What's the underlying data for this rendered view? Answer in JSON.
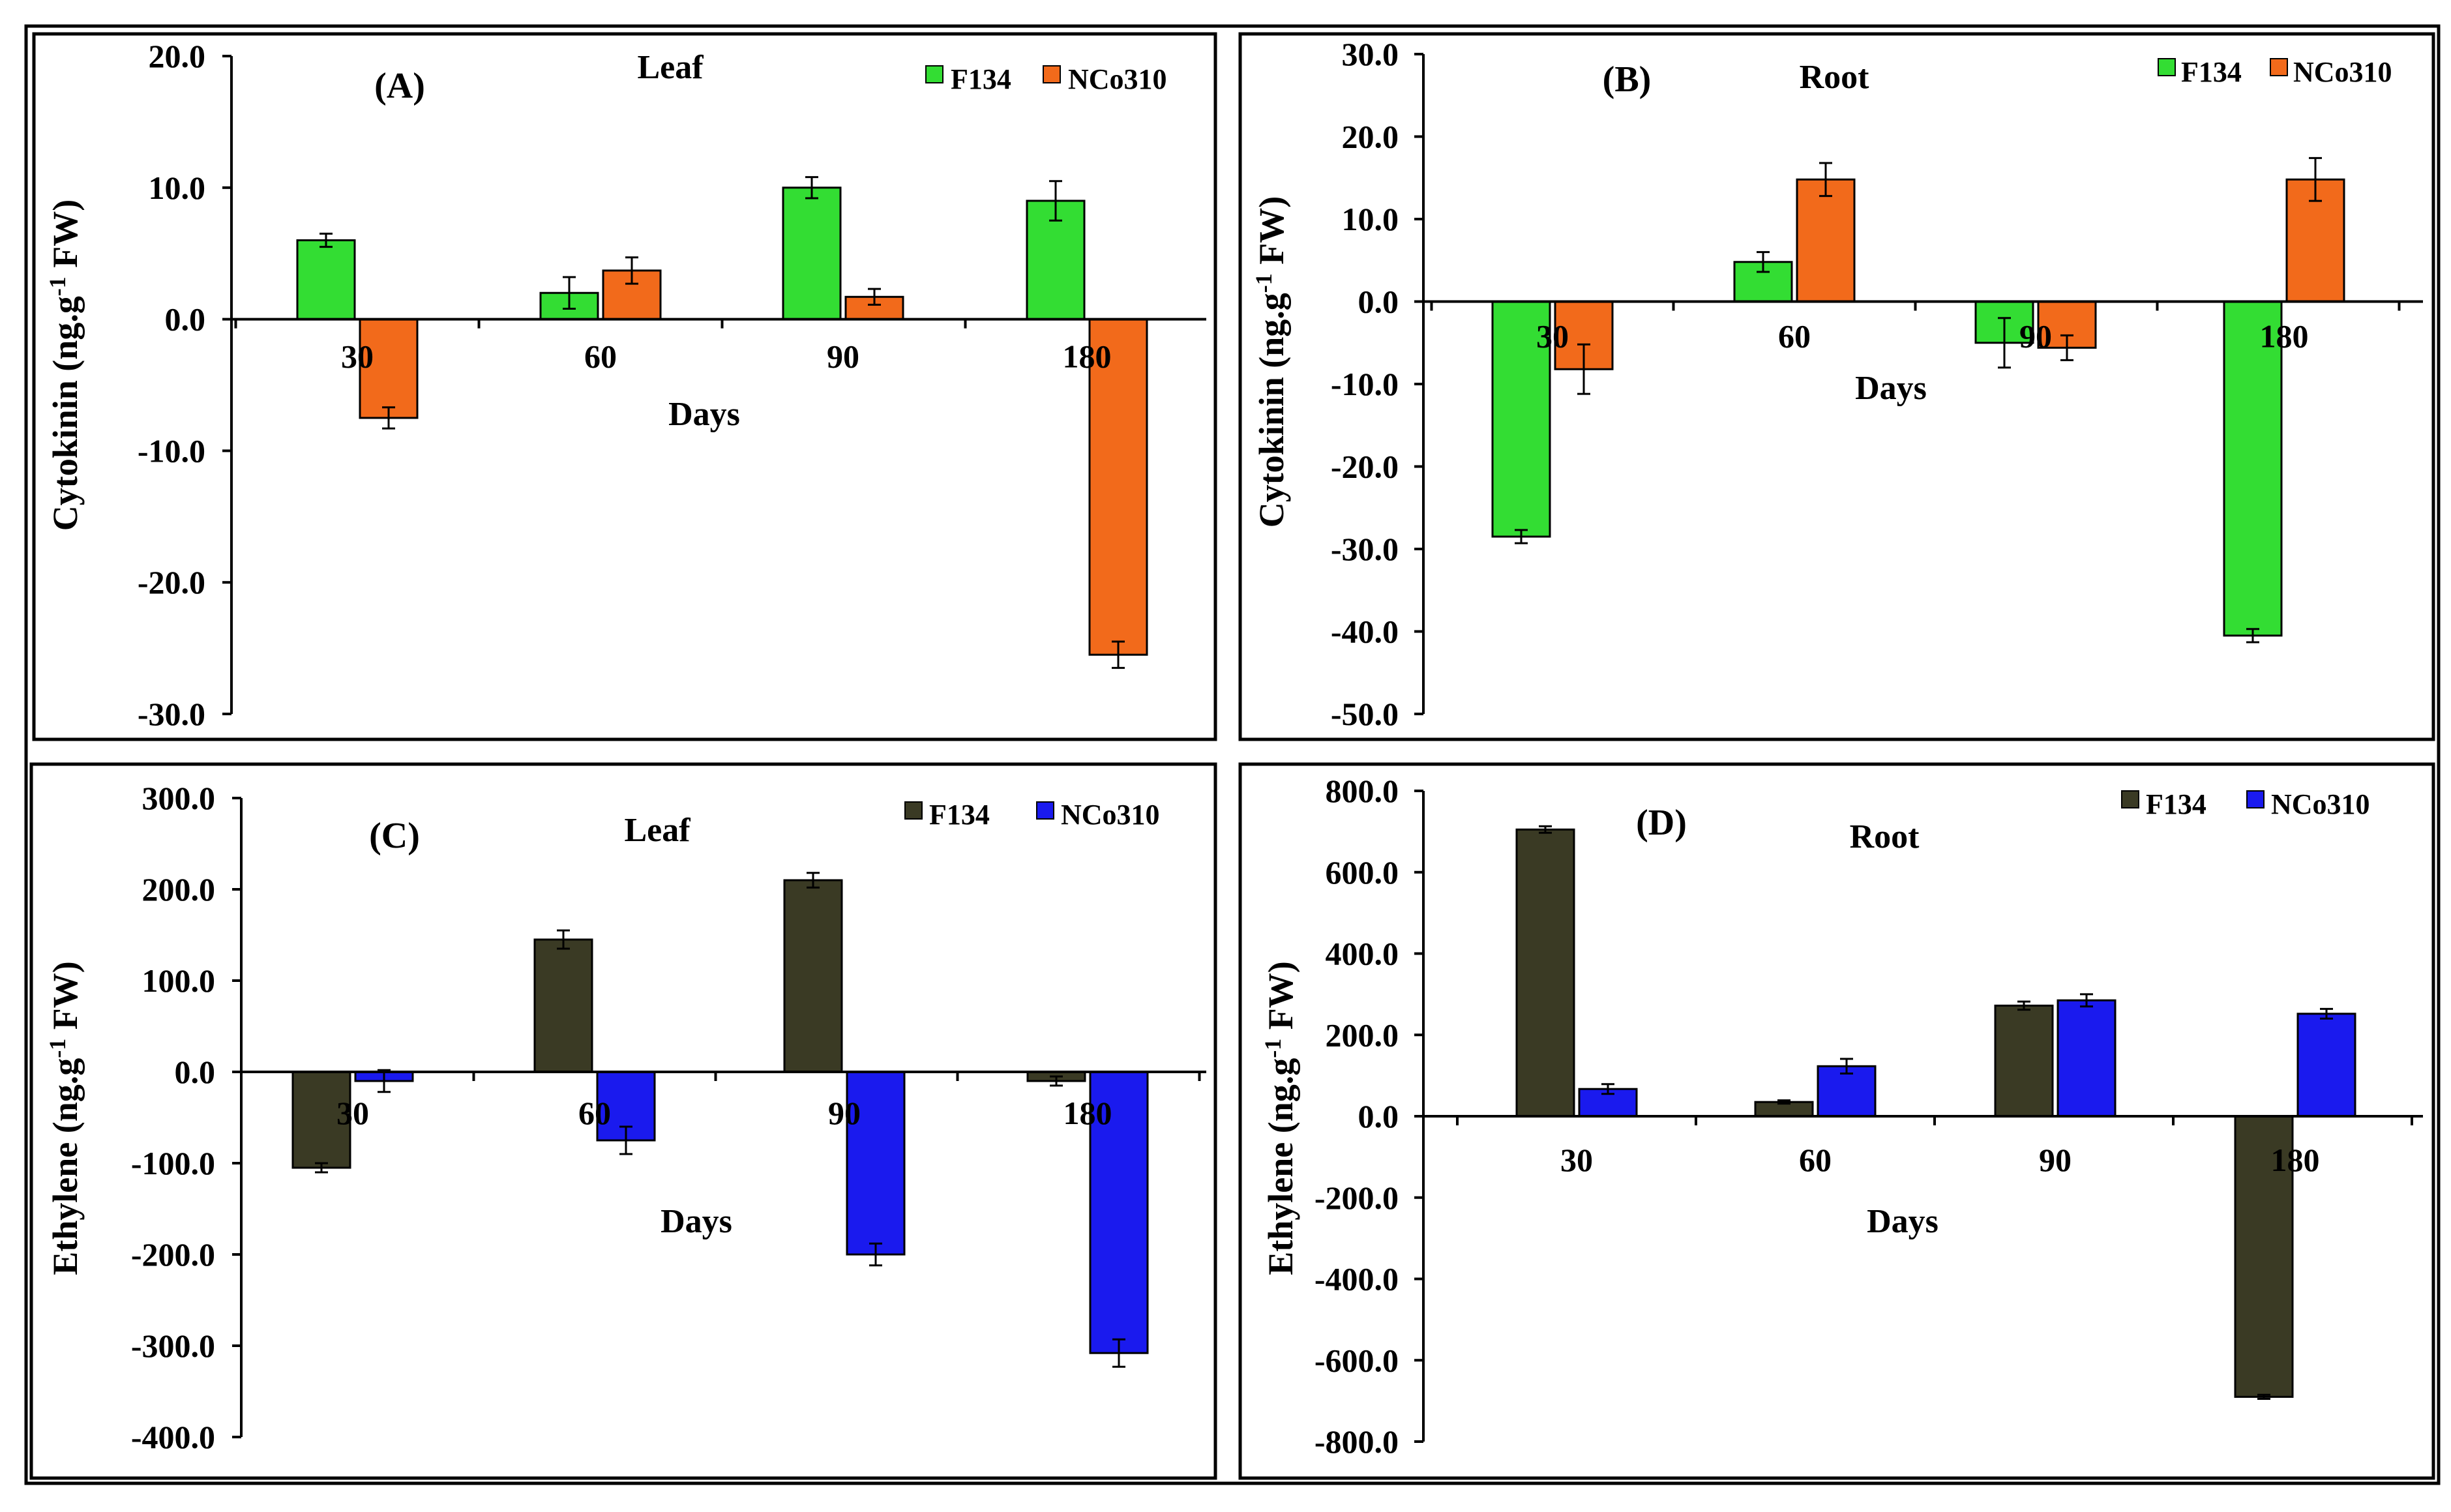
{
  "figure": {
    "colors": {
      "axis": "#000000",
      "background": "#ffffff"
    }
  },
  "panels": [
    {
      "id": "A",
      "label": "(A)",
      "title": "Leaf",
      "ylabel": "Cytokinin (ng.g-1 FW)",
      "xlabel": "Days",
      "yticks": [
        "20.0",
        "10.0",
        "0.0",
        "-10.0",
        "-20.0",
        "-30.0"
      ],
      "chart_data": {
        "type": "bar",
        "categories": [
          "30",
          "60",
          "90",
          "180"
        ],
        "ylim": [
          -30,
          20
        ],
        "series": [
          {
            "name": "F134",
            "color": "#33dd33",
            "values": [
              6.0,
              2.0,
              10.0,
              9.0
            ],
            "errors": [
              0.5,
              1.2,
              0.8,
              1.5
            ]
          },
          {
            "name": "NCo310",
            "color": "#f26a1b",
            "values": [
              -7.5,
              3.7,
              1.7,
              -25.5
            ],
            "errors": [
              0.8,
              1.0,
              0.6,
              1.0
            ]
          }
        ]
      }
    },
    {
      "id": "B",
      "label": "(B)",
      "title": "Root",
      "ylabel": "Cytokinin (ng.g-1 FW)",
      "xlabel": "Days",
      "yticks": [
        "30.0",
        "20.0",
        "10.0",
        "0.0",
        "-10.0",
        "-20.0",
        "-30.0",
        "-40.0",
        "-50.0"
      ],
      "chart_data": {
        "type": "bar",
        "categories": [
          "30",
          "60",
          "90",
          "180"
        ],
        "ylim": [
          -50,
          30
        ],
        "series": [
          {
            "name": "F134",
            "color": "#33dd33",
            "values": [
              -28.5,
              4.8,
              -5.0,
              -40.5
            ],
            "errors": [
              0.8,
              1.2,
              3.0,
              0.8
            ]
          },
          {
            "name": "NCo310",
            "color": "#f26a1b",
            "values": [
              -8.2,
              14.8,
              -5.6,
              14.8
            ],
            "errors": [
              3.0,
              2.0,
              1.5,
              2.6
            ]
          }
        ]
      }
    },
    {
      "id": "C",
      "label": "(C)",
      "title": "Leaf",
      "ylabel": "Ethylene (ng.g-1 FW)",
      "xlabel": "Days",
      "yticks": [
        "300.0",
        "200.0",
        "100.0",
        "0.0",
        "-100.0",
        "-200.0",
        "-300.0",
        "-400.0"
      ],
      "chart_data": {
        "type": "bar",
        "categories": [
          "30",
          "60",
          "90",
          "180"
        ],
        "ylim": [
          -400,
          300
        ],
        "series": [
          {
            "name": "F134",
            "color": "#3a3a24",
            "values": [
              -105,
              145,
              210,
              -10
            ],
            "errors": [
              5,
              10,
              8,
              5
            ]
          },
          {
            "name": "NCo310",
            "color": "#1a1aee",
            "values": [
              -10,
              -75,
              -200,
              -308
            ],
            "errors": [
              12,
              15,
              12,
              15
            ]
          }
        ]
      }
    },
    {
      "id": "D",
      "label": "(D)",
      "title": "Root",
      "ylabel": "Ethylene (ng.g-1 FW)",
      "xlabel": "Days",
      "yticks": [
        "800.0",
        "600.0",
        "400.0",
        "200.0",
        "0.0",
        "-200.0",
        "-400.0",
        "-600.0",
        "-800.0"
      ],
      "chart_data": {
        "type": "bar",
        "categories": [
          "30",
          "60",
          "90",
          "180"
        ],
        "ylim": [
          -800,
          800
        ],
        "series": [
          {
            "name": "F134",
            "color": "#3a3a24",
            "values": [
              705,
              35,
              272,
              -690
            ],
            "errors": [
              8,
              4,
              10,
              5
            ]
          },
          {
            "name": "NCo310",
            "color": "#1a1aee",
            "values": [
              67,
              123,
              285,
              252
            ],
            "errors": [
              12,
              18,
              15,
              12
            ]
          }
        ]
      }
    }
  ]
}
